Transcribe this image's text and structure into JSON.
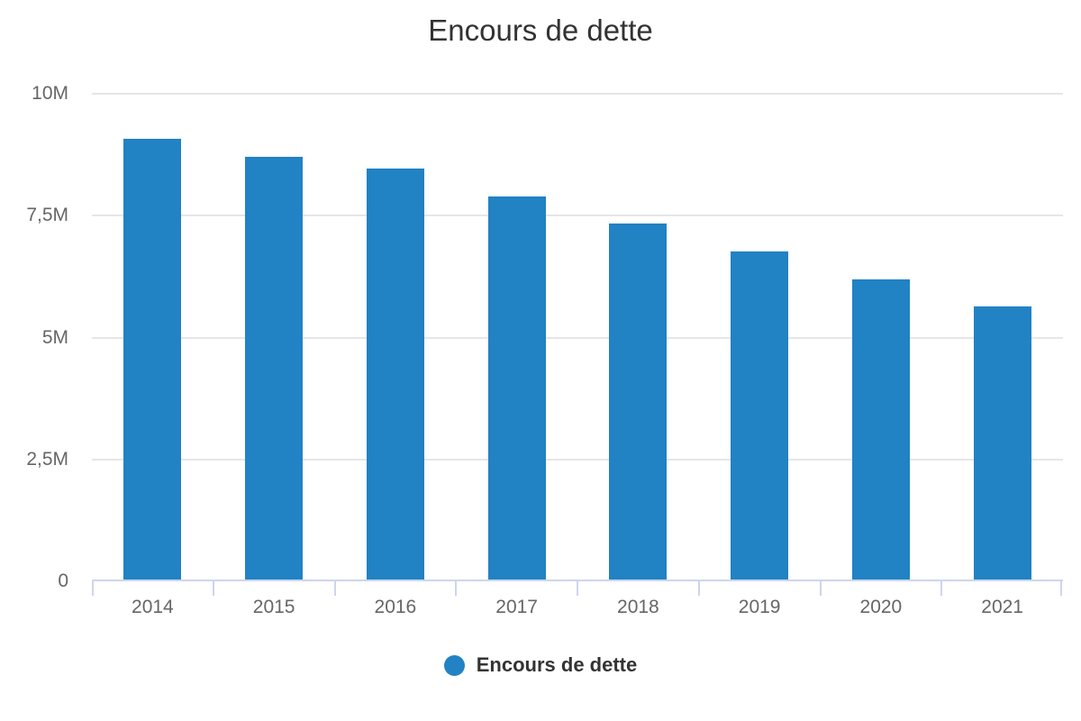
{
  "chart_data": {
    "type": "bar",
    "title": "Encours de dette",
    "categories": [
      "2014",
      "2015",
      "2016",
      "2017",
      "2018",
      "2019",
      "2020",
      "2021"
    ],
    "values_millions": [
      9.08,
      8.71,
      8.46,
      7.9,
      7.34,
      6.77,
      6.2,
      5.64
    ],
    "xlabel": "",
    "ylabel": "",
    "ylim": [
      0,
      10
    ],
    "yticks": [
      0,
      2.5,
      5,
      7.5,
      10
    ],
    "ytick_labels": [
      "0",
      "2,5M",
      "5M",
      "7,5M",
      "10M"
    ],
    "grid": true,
    "legend_position": "bottom",
    "legend_entries": [
      "Encours de dette"
    ]
  },
  "legend": {
    "label": "Encours de dette"
  },
  "colors": {
    "bar": "#2182c4",
    "grid": "#e6e6e6",
    "axis": "#ccd6eb",
    "label": "#666666",
    "title": "#333333",
    "background": "#ffffff"
  }
}
